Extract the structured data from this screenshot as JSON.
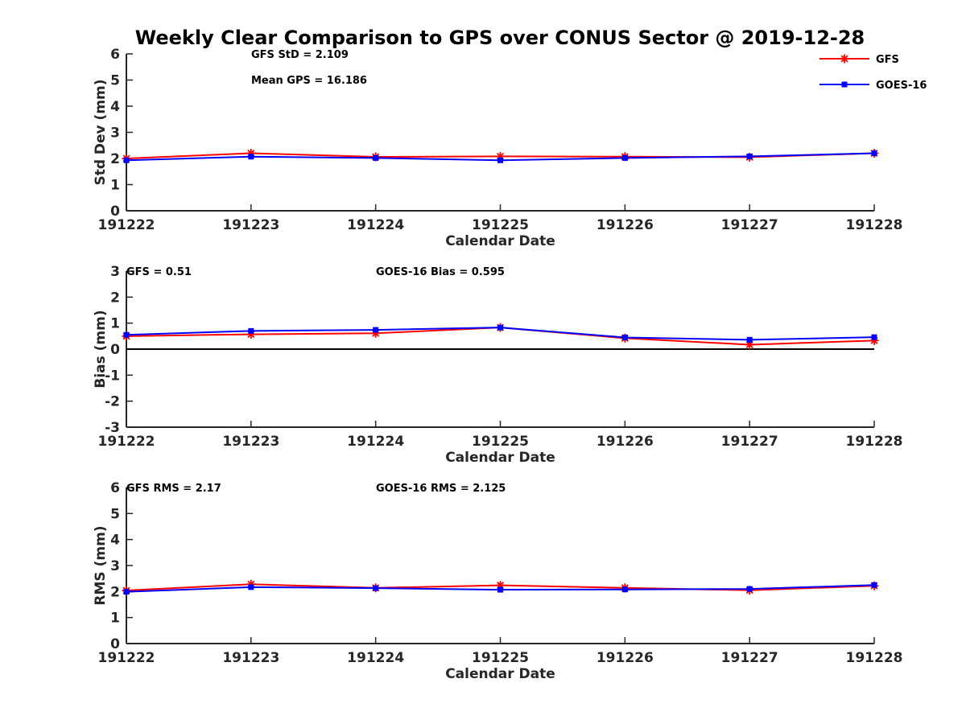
{
  "title": "Weekly Clear Comparison to GPS over CONUS Sector @ 2019-12-28",
  "colors": {
    "gfs": "#ff0000",
    "goes": "#0000ff",
    "axis": "#262626",
    "zero_line": "#000000"
  },
  "legend": {
    "placement": "top-right of first panel",
    "entries": [
      {
        "name": "GFS",
        "marker": "asterisk",
        "color": "#ff0000"
      },
      {
        "name": "GOES-16",
        "marker": "square",
        "color": "#0000ff"
      }
    ]
  },
  "chart_data": [
    {
      "type": "line",
      "ylabel": "Std Dev (mm)",
      "xlabel": "Calendar Date",
      "categories": [
        "191222",
        "191223",
        "191224",
        "191225",
        "191226",
        "191227",
        "191228"
      ],
      "ylim": [
        0,
        6
      ],
      "yticks": [
        0,
        1,
        2,
        3,
        4,
        5,
        6
      ],
      "zero_line": false,
      "annotations": [
        "GFS StD = 2.109",
        "Mean GPS = 16.186"
      ],
      "series": [
        {
          "name": "GFS",
          "values": [
            2.0,
            2.2,
            2.06,
            2.08,
            2.07,
            2.05,
            2.2
          ]
        },
        {
          "name": "GOES-16",
          "values": [
            1.93,
            2.07,
            2.02,
            1.93,
            2.02,
            2.08,
            2.2
          ]
        }
      ]
    },
    {
      "type": "line",
      "ylabel": "Bias (mm)",
      "xlabel": "Calendar Date",
      "categories": [
        "191222",
        "191223",
        "191224",
        "191225",
        "191226",
        "191227",
        "191228"
      ],
      "ylim": [
        -3,
        3
      ],
      "yticks": [
        -3,
        -2,
        -1,
        0,
        1,
        2,
        3
      ],
      "zero_line": true,
      "annotations": [
        "GFS = 0.51",
        "GOES-16 Bias  = 0.595"
      ],
      "series": [
        {
          "name": "GFS",
          "values": [
            0.5,
            0.57,
            0.61,
            0.83,
            0.42,
            0.17,
            0.33
          ]
        },
        {
          "name": "GOES-16",
          "values": [
            0.55,
            0.7,
            0.74,
            0.83,
            0.45,
            0.36,
            0.46
          ]
        }
      ]
    },
    {
      "type": "line",
      "ylabel": "RMS (mm)",
      "xlabel": "Calendar Date",
      "categories": [
        "191222",
        "191223",
        "191224",
        "191225",
        "191226",
        "191227",
        "191228"
      ],
      "ylim": [
        0,
        6
      ],
      "yticks": [
        0,
        1,
        2,
        3,
        4,
        5,
        6
      ],
      "zero_line": false,
      "annotations": [
        "GFS RMS = 2.17",
        "GOES-16 RMS = 2.125"
      ],
      "series": [
        {
          "name": "GFS",
          "values": [
            2.04,
            2.28,
            2.14,
            2.24,
            2.14,
            2.05,
            2.22
          ]
        },
        {
          "name": "GOES-16",
          "values": [
            1.99,
            2.17,
            2.13,
            2.07,
            2.08,
            2.1,
            2.25
          ]
        }
      ]
    }
  ]
}
